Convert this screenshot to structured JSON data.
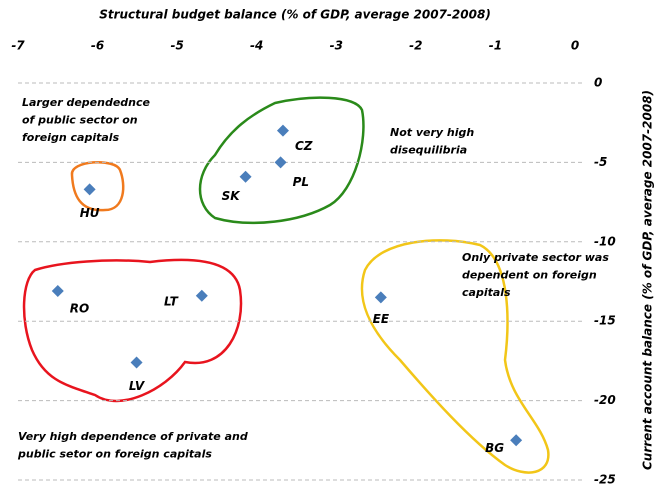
{
  "chart_data": {
    "type": "scatter",
    "x_label": "Structural budget balance (% of GDP, average 2007-2008)",
    "y_label": "Current account balance (% of GDP, average 2007-2008)",
    "xlim": [
      -7,
      0
    ],
    "xticks": [
      -7,
      -6,
      -5,
      -4,
      -3,
      -2,
      -1,
      0
    ],
    "ylim": [
      -25,
      0
    ],
    "yticks": [
      0,
      -5,
      -10,
      -15,
      -20,
      -25
    ],
    "grid": true,
    "color": "#4a7ebb",
    "labels": [
      "CZ",
      "PL",
      "SK",
      "HU",
      "RO",
      "LT",
      "LV",
      "EE",
      "BG"
    ],
    "x": [
      -3.67,
      -3.7,
      -4.14,
      -6.1,
      -6.5,
      -4.69,
      -5.51,
      -2.44,
      -0.74
    ],
    "values": [
      -3.0,
      -5.0,
      -5.9,
      -6.7,
      -13.1,
      -13.4,
      -17.6,
      -13.5,
      -22.5
    ],
    "annotations": [
      {
        "lines": [
          "Larger dependednce",
          "of public sector on",
          "foreign capitals"
        ],
        "color": "#e87722"
      },
      {
        "lines": [
          "Not very high",
          "disequilibria"
        ],
        "color": "#1e7b1e"
      },
      {
        "lines": [
          "Only private  sector was",
          "dependent on foreign",
          "capitals"
        ],
        "color": "#c88a12"
      },
      {
        "lines": [
          "Very high dependence of  private and",
          "public setor on foreign capitals"
        ],
        "color": "#e8141e"
      }
    ]
  }
}
